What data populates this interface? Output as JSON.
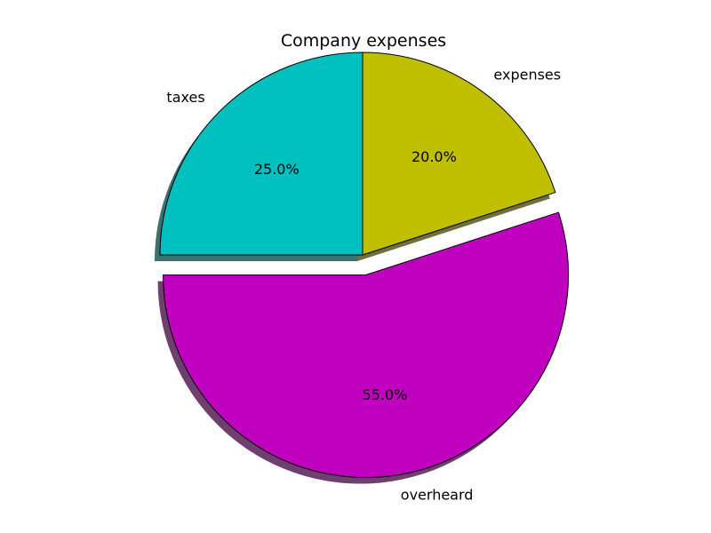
{
  "chart_data": {
    "type": "pie",
    "title": "Company expenses",
    "labels": [
      "taxes",
      "overheard",
      "expenses"
    ],
    "values": [
      25,
      55,
      20
    ],
    "percent_labels": [
      "25.0%",
      "55.0%",
      "20.0%"
    ],
    "colors": [
      "#00bfbf",
      "#bf00bf",
      "#bfbf00"
    ],
    "explode": [
      0,
      0.1,
      0
    ],
    "start_angle": 90,
    "counterclock": true,
    "shadow": true,
    "edge_color": "#000000"
  }
}
